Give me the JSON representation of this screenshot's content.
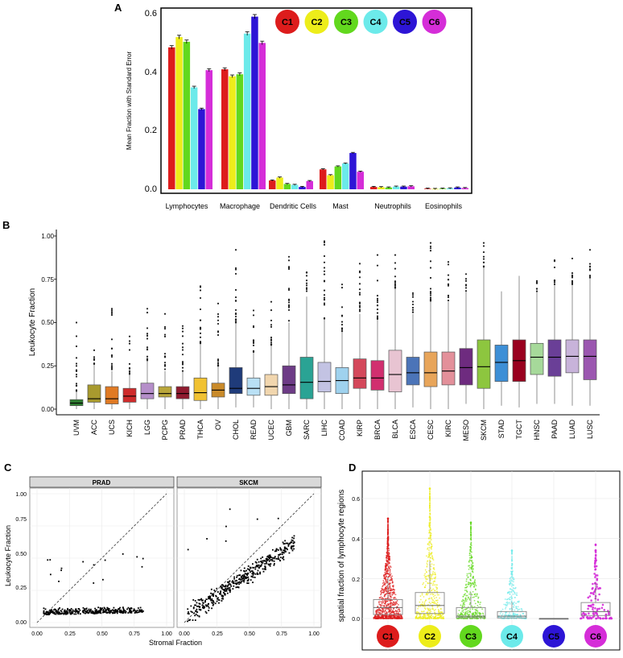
{
  "clusters": [
    {
      "label": "C1",
      "color": "#dd1c1c"
    },
    {
      "label": "C2",
      "color": "#eded1a"
    },
    {
      "label": "C3",
      "color": "#62d81e"
    },
    {
      "label": "C4",
      "color": "#6ceaea"
    },
    {
      "label": "C5",
      "color": "#2d15d6"
    },
    {
      "label": "C6",
      "color": "#d52dd8"
    }
  ],
  "chart_data": [
    {
      "panel": "A",
      "type": "bar",
      "ylabel": "Mean Fraction with Standard Error",
      "ylim": [
        0,
        0.62
      ],
      "yticks": [
        "0.0",
        "0.2",
        "0.4",
        "0.6"
      ],
      "categories": [
        "Lymphocytes",
        "Macrophage",
        "Dendritic Cells",
        "Mast",
        "Neutrophils",
        "Eosinophils"
      ],
      "series": [
        {
          "name": "C1",
          "values": [
            0.485,
            0.41,
            0.03,
            0.068,
            0.008,
            0.002
          ]
        },
        {
          "name": "C2",
          "values": [
            0.52,
            0.386,
            0.04,
            0.048,
            0.007,
            0.001
          ]
        },
        {
          "name": "C3",
          "values": [
            0.504,
            0.393,
            0.018,
            0.078,
            0.006,
            0.002
          ]
        },
        {
          "name": "C4",
          "values": [
            0.348,
            0.532,
            0.015,
            0.088,
            0.009,
            0.003
          ]
        },
        {
          "name": "C5",
          "values": [
            0.274,
            0.59,
            0.008,
            0.124,
            0.009,
            0.006
          ]
        },
        {
          "name": "C6",
          "values": [
            0.407,
            0.5,
            0.028,
            0.06,
            0.01,
            0.004
          ]
        }
      ]
    },
    {
      "panel": "B",
      "type": "box",
      "ylabel": "Leukocyte Fraction",
      "ylim": [
        0,
        1
      ],
      "yticks": [
        "0.00",
        "0.25",
        "0.50",
        "0.75",
        "1.00"
      ],
      "categories": [
        "UVM",
        "ACC",
        "UCS",
        "KICH",
        "LGG",
        "PCPG",
        "PRAD",
        "THCA",
        "OV",
        "CHOL",
        "READ",
        "UCEC",
        "GBM",
        "SARC",
        "LIHC",
        "COAD",
        "KIRP",
        "BRCA",
        "BLCA",
        "ESCA",
        "CESC",
        "KIRC",
        "MESO",
        "SKCM",
        "STAD",
        "TGCT",
        "HNSC",
        "PAAD",
        "LUAD",
        "LUSC"
      ],
      "colors": [
        "#2f7d32",
        "#a89a2e",
        "#e07a24",
        "#cf2b2b",
        "#b58ec9",
        "#b9a63a",
        "#8f1a2f",
        "#f1c232",
        "#c98a2a",
        "#1f3b7a",
        "#b9e0f5",
        "#f1d6ae",
        "#6d3b86",
        "#2aa394",
        "#c3c3e3",
        "#9fd2ee",
        "#d4485b",
        "#d12f6f",
        "#e8c4d2",
        "#4b74b8",
        "#e8a55a",
        "#e3909a",
        "#6e2b7f",
        "#8dc63f",
        "#3d8fd6",
        "#99001f",
        "#a6d99a",
        "#6a3f97",
        "#c8b3da",
        "#9b57b0"
      ],
      "q1": [
        0.02,
        0.04,
        0.03,
        0.04,
        0.06,
        0.07,
        0.06,
        0.05,
        0.07,
        0.09,
        0.08,
        0.08,
        0.09,
        0.06,
        0.1,
        0.09,
        0.12,
        0.11,
        0.1,
        0.14,
        0.13,
        0.14,
        0.14,
        0.12,
        0.16,
        0.16,
        0.2,
        0.19,
        0.21,
        0.17
      ],
      "median": [
        0.035,
        0.06,
        0.06,
        0.075,
        0.09,
        0.09,
        0.09,
        0.095,
        0.11,
        0.12,
        0.12,
        0.13,
        0.14,
        0.155,
        0.16,
        0.165,
        0.18,
        0.18,
        0.2,
        0.21,
        0.21,
        0.22,
        0.24,
        0.245,
        0.27,
        0.28,
        0.3,
        0.3,
        0.305,
        0.305
      ],
      "q3": [
        0.055,
        0.14,
        0.13,
        0.12,
        0.15,
        0.13,
        0.13,
        0.18,
        0.15,
        0.24,
        0.18,
        0.2,
        0.25,
        0.3,
        0.27,
        0.24,
        0.29,
        0.28,
        0.34,
        0.3,
        0.33,
        0.33,
        0.35,
        0.4,
        0.37,
        0.4,
        0.38,
        0.4,
        0.4,
        0.4
      ],
      "whisker_low": [
        0.0,
        0.0,
        0.0,
        0.0,
        0.0,
        0.0,
        0.0,
        0.0,
        0.0,
        0.01,
        0.01,
        0.0,
        0.0,
        0.0,
        0.0,
        0.0,
        0.0,
        0.0,
        0.0,
        0.01,
        0.0,
        0.0,
        0.03,
        0.0,
        0.02,
        0.01,
        0.03,
        0.03,
        0.02,
        0.02
      ],
      "whisker_high": [
        0.1,
        0.26,
        0.22,
        0.2,
        0.28,
        0.22,
        0.22,
        0.38,
        0.25,
        0.5,
        0.33,
        0.37,
        0.5,
        0.65,
        0.52,
        0.45,
        0.55,
        0.52,
        0.7,
        0.55,
        0.62,
        0.62,
        0.68,
        0.82,
        0.68,
        0.77,
        0.68,
        0.72,
        0.72,
        0.76
      ],
      "max_outlier": [
        0.5,
        0.34,
        0.58,
        0.42,
        0.58,
        0.55,
        0.48,
        0.71,
        0.61,
        0.92,
        0.57,
        0.62,
        0.88,
        0.79,
        0.97,
        0.72,
        0.84,
        0.89,
        0.89,
        0.67,
        0.96,
        0.85,
        0.78,
        0.96,
        0.68,
        0.77,
        0.74,
        0.86,
        0.87,
        0.92
      ]
    },
    {
      "panel": "C",
      "type": "scatter",
      "xlabel": "Stromal Fraction",
      "ylabel": "Leukocyte Fraction",
      "xlim": [
        0,
        1
      ],
      "ylim": [
        0,
        1
      ],
      "xticks": [
        "0.00",
        "0.25",
        "0.50",
        "0.75",
        "1.00"
      ],
      "yticks": [
        "0.00",
        "0.25",
        "0.50",
        "0.75",
        "1.00"
      ],
      "facets": [
        {
          "name": "PRAD",
          "trend": {
            "x_range": [
              0.05,
              0.82
            ],
            "y_mean": 0.06,
            "y_spread": 0.09
          }
        },
        {
          "name": "SKCM",
          "trend": {
            "x_range": [
              0.02,
              0.85
            ],
            "slope": 0.68,
            "intercept": 0.04,
            "y_spread": 0.1
          }
        }
      ],
      "reference_line": "y = x"
    },
    {
      "panel": "D",
      "type": "box",
      "ylabel": "spatial fraction of lymphocyte regions",
      "ylim": [
        0,
        0.65
      ],
      "yticks": [
        "0.0",
        "0.2",
        "0.4",
        "0.6"
      ],
      "categories": [
        "C1",
        "C2",
        "C3",
        "C4",
        "C5",
        "C6"
      ],
      "q1": [
        0.02,
        0.025,
        0.004,
        0.003,
        0.0,
        0.015
      ],
      "median": [
        0.055,
        0.065,
        0.012,
        0.012,
        0.0,
        0.035
      ],
      "q3": [
        0.095,
        0.13,
        0.055,
        0.035,
        0.0,
        0.08
      ],
      "max": [
        0.5,
        0.65,
        0.48,
        0.34,
        0.0,
        0.37
      ]
    }
  ],
  "panel_labels": {
    "a": "A",
    "b": "B",
    "c": "C",
    "d": "D"
  }
}
